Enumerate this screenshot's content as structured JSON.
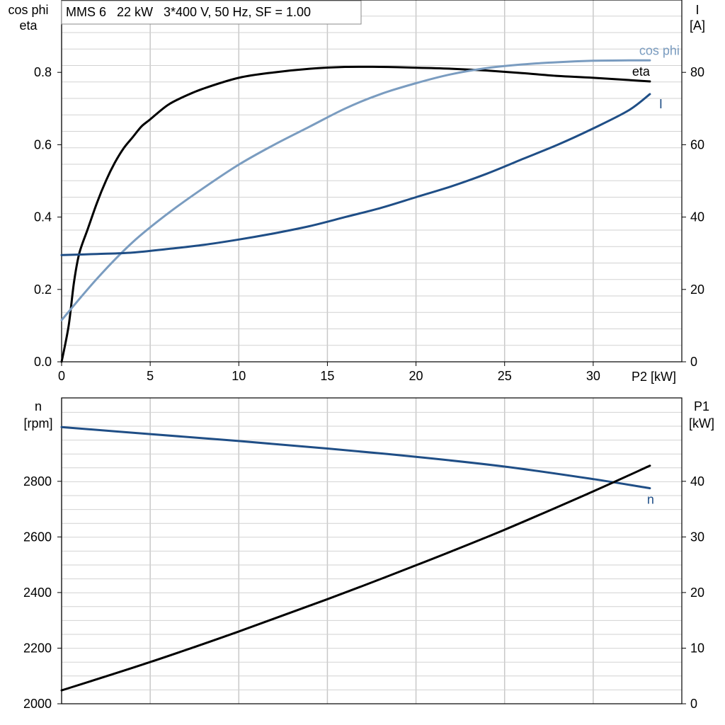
{
  "chart_data": [
    {
      "type": "line",
      "caption": "MMS 6   22 kW   3*400 V, 50 Hz, SF = 1.00",
      "xlabel": "P2 [kW]",
      "xlim": [
        0,
        35
      ],
      "xticks": [
        0,
        5,
        10,
        15,
        20,
        25,
        30
      ],
      "ylabel_left_line1": "cos phi",
      "ylabel_left_line2": "eta",
      "ylim_left": [
        0,
        1.0
      ],
      "yticks_left": [
        "0.0",
        "0.2",
        "0.4",
        "0.6",
        "0.8"
      ],
      "ylabel_right_line1": "I",
      "ylabel_right_line2": "[A]",
      "ylim_right": [
        0,
        100
      ],
      "yticks_right": [
        "0",
        "20",
        "40",
        "60",
        "80"
      ],
      "grid": true,
      "series": [
        {
          "name": "eta",
          "axis": "left",
          "color": "#000000",
          "x": [
            0,
            0.4,
            0.7,
            1,
            1.5,
            2,
            2.5,
            3,
            3.5,
            4,
            4.5,
            5,
            6,
            7,
            8,
            10,
            12,
            14,
            16,
            18,
            20,
            22,
            24,
            26,
            28,
            30,
            33.2
          ],
          "y": [
            0.0,
            0.1,
            0.22,
            0.3,
            0.37,
            0.44,
            0.5,
            0.55,
            0.59,
            0.62,
            0.65,
            0.67,
            0.71,
            0.735,
            0.755,
            0.785,
            0.8,
            0.81,
            0.815,
            0.815,
            0.813,
            0.81,
            0.805,
            0.798,
            0.79,
            0.785,
            0.775
          ]
        },
        {
          "name": "cos phi",
          "axis": "left",
          "color": "#7a9cc0",
          "x": [
            0,
            2,
            4,
            6,
            8,
            10,
            12,
            14,
            16,
            18,
            20,
            22,
            24,
            26,
            28,
            30,
            32,
            33.2
          ],
          "y": [
            0.115,
            0.23,
            0.33,
            0.41,
            0.48,
            0.545,
            0.6,
            0.65,
            0.7,
            0.74,
            0.77,
            0.795,
            0.812,
            0.822,
            0.828,
            0.832,
            0.833,
            0.833
          ]
        },
        {
          "name": "I",
          "axis": "right",
          "color": "#1f4e86",
          "x": [
            0,
            2,
            4,
            6,
            8,
            10,
            12,
            14,
            16,
            18,
            20,
            22,
            24,
            26,
            28,
            30,
            32,
            33.2
          ],
          "y": [
            29.5,
            29.8,
            30.2,
            31.2,
            32.3,
            33.8,
            35.5,
            37.5,
            40,
            42.5,
            45.5,
            48.5,
            52,
            56,
            60,
            64.5,
            69.5,
            74
          ]
        }
      ]
    },
    {
      "type": "line",
      "xlim": [
        0,
        35
      ],
      "xticks": [
        0,
        5,
        10,
        15,
        20,
        25,
        30
      ],
      "ylabel_left_line1": "n",
      "ylabel_left_line2": "[rpm]",
      "ylim_left": [
        2000,
        3100
      ],
      "yticks_left": [
        "2000",
        "2200",
        "2400",
        "2600",
        "2800"
      ],
      "ylabel_right_line1": "P1",
      "ylabel_right_line2": "[kW]",
      "ylim_right": [
        0,
        55
      ],
      "yticks_right": [
        "0",
        "10",
        "20",
        "30",
        "40"
      ],
      "grid": true,
      "series": [
        {
          "name": "n",
          "axis": "left",
          "color": "#1f4e86",
          "x": [
            0,
            5,
            10,
            15,
            20,
            25,
            30,
            33.2
          ],
          "y": [
            2995,
            2970,
            2945,
            2918,
            2888,
            2853,
            2808,
            2775
          ]
        },
        {
          "name": "",
          "axis": "right",
          "color": "#000000",
          "x": [
            0,
            5,
            10,
            15,
            20,
            25,
            30,
            33.2
          ],
          "y": [
            2.4,
            7.5,
            13,
            18.8,
            24.9,
            31.3,
            38.2,
            42.8
          ]
        }
      ]
    }
  ]
}
